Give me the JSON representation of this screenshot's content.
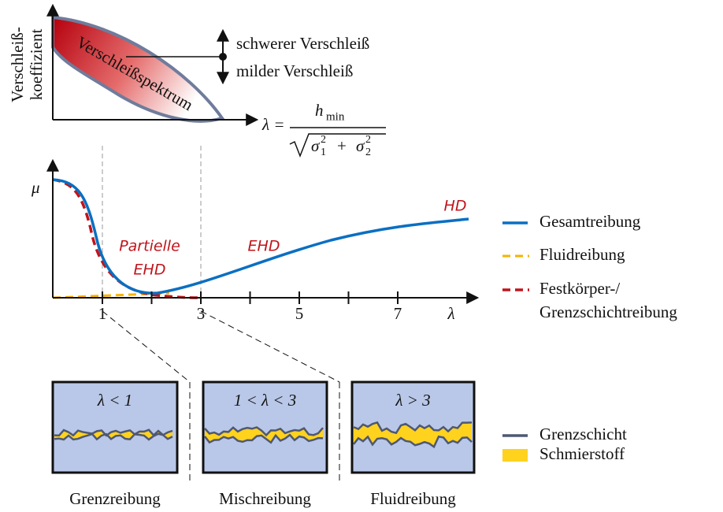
{
  "wear_chart": {
    "y_label": [
      "Verschleiß-",
      "koeffizient"
    ],
    "band_label": "Verschleißspektrum",
    "upper_label": "schwerer Verschleiß",
    "lower_label": "milder Verschleiß"
  },
  "formula": {
    "lhs": "λ =",
    "numerator": "h",
    "numerator_sub": "min",
    "denominator": [
      "σ",
      "1",
      "2",
      "+",
      "σ",
      "2",
      "2"
    ]
  },
  "stribeck": {
    "y_label": "μ",
    "regions": [
      "Partielle",
      "EHD",
      "EHD",
      "HD"
    ],
    "xticks": [
      "1",
      "3",
      "5",
      "7"
    ],
    "x_label": "λ"
  },
  "legend": [
    "Gesamtreibung",
    "Fluidreibung",
    "Festkörper-/",
    "Grenzschichtreibung",
    "Grenzschicht",
    "Schmierstoff"
  ],
  "panels": [
    {
      "condition": "λ < 1",
      "label": "Grenzreibung"
    },
    {
      "condition": "1 < λ < 3",
      "label": "Mischreibung"
    },
    {
      "condition": "λ > 3",
      "label": "Fluidreibung"
    }
  ]
}
